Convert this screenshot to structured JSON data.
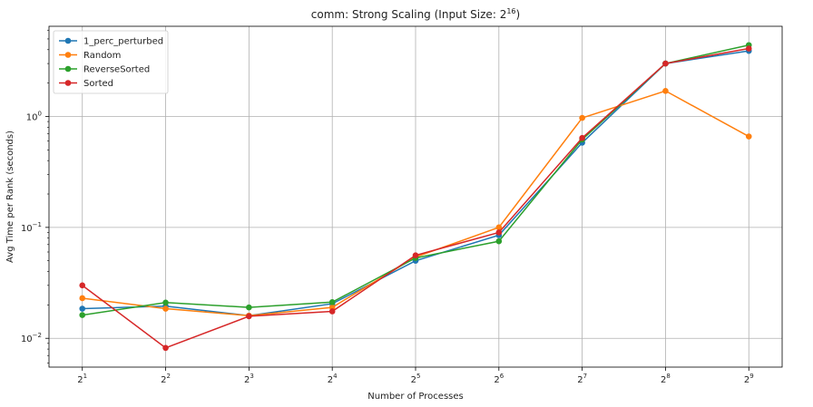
{
  "chart_data": {
    "type": "line",
    "title": "comm: Strong Scaling (Input Size: ",
    "title_exp_base": "2",
    "title_exp": "16",
    "title_suffix": ")",
    "xlabel": "Number of Processes",
    "ylabel": "Avg Time per Rank (seconds)",
    "x_exponents": [
      1,
      2,
      3,
      4,
      5,
      6,
      7,
      8,
      9
    ],
    "x_tick_base": "2",
    "x_tick_exps": [
      "1",
      "2",
      "3",
      "4",
      "5",
      "6",
      "7",
      "8",
      "9"
    ],
    "y_scale": "log",
    "ylim": [
      0.0055,
      6.5
    ],
    "y_ticks": [
      {
        "value": 0.01,
        "base": "10",
        "exp": "−2"
      },
      {
        "value": 0.1,
        "base": "10",
        "exp": "−1"
      },
      {
        "value": 1,
        "base": "10",
        "exp": "0"
      }
    ],
    "grid": true,
    "legend_position": "top-left",
    "series": [
      {
        "name": "1_perc_perturbed",
        "color": "#1f77b4",
        "values": [
          0.0185,
          0.0195,
          0.016,
          0.0205,
          0.05,
          0.085,
          0.58,
          3.0,
          3.9
        ]
      },
      {
        "name": "Random",
        "color": "#ff7f0e",
        "values": [
          0.023,
          0.0185,
          0.016,
          0.019,
          0.054,
          0.1,
          0.97,
          1.7,
          0.66
        ]
      },
      {
        "name": "ReverseSorted",
        "color": "#2ca02c",
        "values": [
          0.0162,
          0.021,
          0.019,
          0.0212,
          0.053,
          0.075,
          0.62,
          3.0,
          4.4
        ]
      },
      {
        "name": "Sorted",
        "color": "#d62728",
        "values": [
          0.03,
          0.0082,
          0.0158,
          0.0175,
          0.056,
          0.09,
          0.64,
          3.0,
          4.1
        ]
      }
    ]
  }
}
